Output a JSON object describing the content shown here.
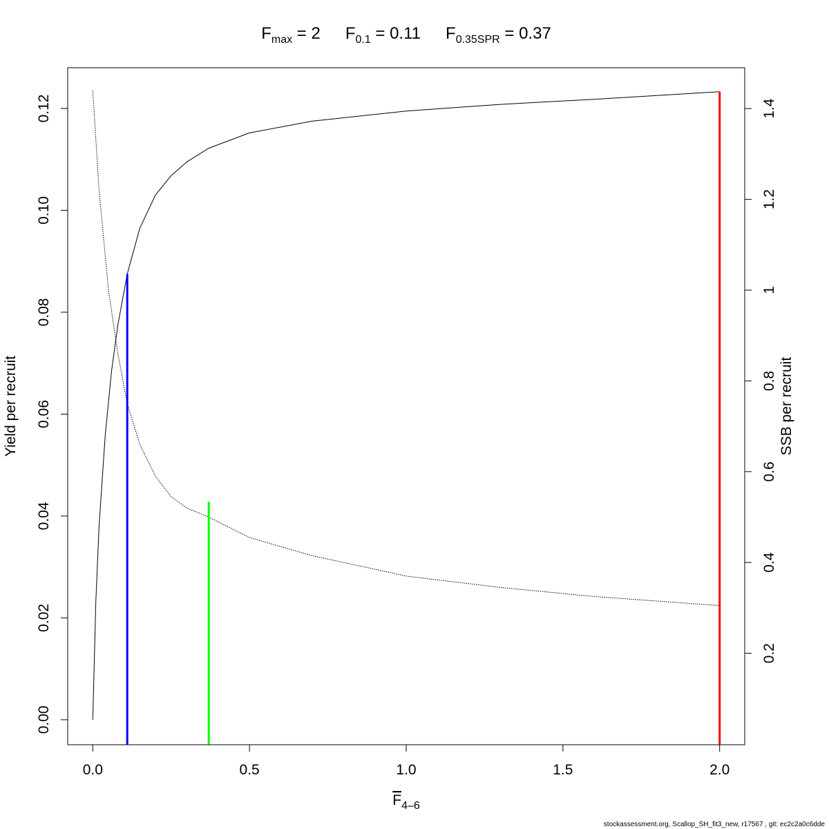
{
  "title": {
    "fmax": {
      "base": "F",
      "sub": "max",
      "value": "= 2"
    },
    "f01": {
      "base": "F",
      "sub": "0.1",
      "value": "= 0.11"
    },
    "fspr": {
      "base": "F",
      "sub": "0.35SPR",
      "value": "= 0.37"
    }
  },
  "footer": "stockassessment.org, Scallop_SH_fit3_new, r17567 , git: ec2c2a0c6dde",
  "colors": {
    "fmax_line": "#ff0000",
    "f01_line": "#0000ff",
    "fspr_line": "#00ff00",
    "curve": "#000000"
  },
  "chart_data": {
    "type": "line",
    "title": "",
    "xlabel": {
      "base": "F",
      "sub": "4–6",
      "overline": true
    },
    "ylabel": "Yield per recruit",
    "y2label": "SSB per recruit",
    "xlim": [
      -0.08,
      2.08
    ],
    "ylim": [
      -0.0049,
      0.128
    ],
    "y2lim": [
      -0.0015,
      1.49
    ],
    "x_ticks": [
      "0.0",
      "0.5",
      "1.0",
      "1.5",
      "2.0"
    ],
    "y_ticks": [
      "0.00",
      "0.02",
      "0.04",
      "0.06",
      "0.08",
      "0.10",
      "0.12"
    ],
    "y2_ticks": [
      "0.2",
      "0.4",
      "0.6",
      "0.8",
      "1",
      "1.2",
      "1.4"
    ],
    "grid": false,
    "series": [
      {
        "name": "Yield per recruit",
        "axis": "left",
        "style": "solid",
        "x": [
          0,
          0.01,
          0.02,
          0.04,
          0.06,
          0.08,
          0.11,
          0.15,
          0.2,
          0.25,
          0.3,
          0.37,
          0.5,
          0.7,
          1.0,
          1.3,
          1.6,
          2.0
        ],
        "y": [
          0.0,
          0.0235,
          0.038,
          0.056,
          0.0685,
          0.0775,
          0.0875,
          0.0965,
          0.103,
          0.1068,
          0.1095,
          0.1122,
          0.1152,
          0.1175,
          0.1195,
          0.1208,
          0.1218,
          0.1233
        ]
      },
      {
        "name": "SSB per recruit",
        "axis": "right",
        "style": "dotted",
        "x": [
          0,
          0.02,
          0.05,
          0.08,
          0.11,
          0.15,
          0.2,
          0.25,
          0.3,
          0.37,
          0.5,
          0.7,
          1.0,
          1.3,
          1.6,
          2.0
        ],
        "y": [
          1.44,
          1.22,
          1.0,
          0.86,
          0.75,
          0.66,
          0.59,
          0.545,
          0.52,
          0.5,
          0.455,
          0.415,
          0.37,
          0.345,
          0.325,
          0.305
        ]
      }
    ],
    "reference_lines": [
      {
        "name": "F0.1",
        "x": 0.11,
        "yield": 0.0875,
        "color": "#0000ff"
      },
      {
        "name": "F0.35SPR",
        "x": 0.37,
        "yield": 0.0428,
        "color": "#00ff00"
      },
      {
        "name": "Fmax",
        "x": 2.0,
        "yield": 0.1233,
        "color": "#ff0000"
      }
    ]
  }
}
